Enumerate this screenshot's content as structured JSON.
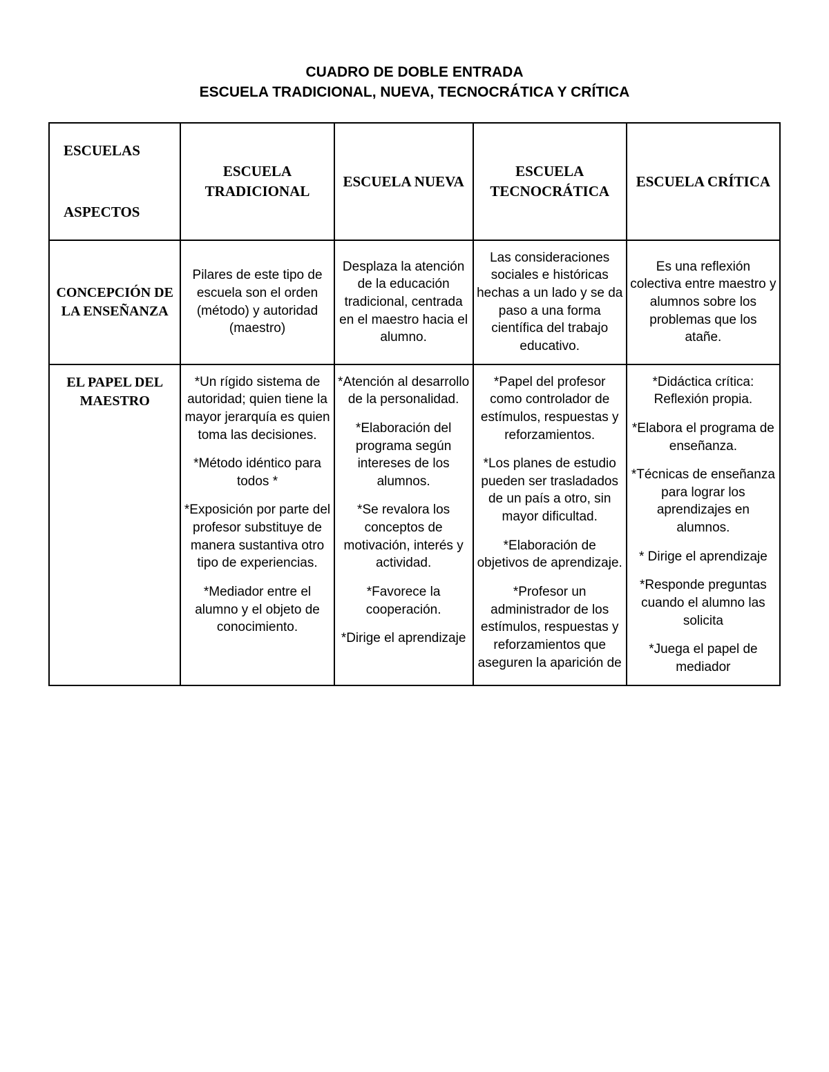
{
  "title": {
    "line1": "CUADRO DE DOBLE ENTRADA",
    "line2": "ESCUELA TRADICIONAL, NUEVA, TECNOCRÁTICA Y CRÍTICA"
  },
  "headers": {
    "corner_top": "ESCUELAS",
    "corner_bottom": "ASPECTOS",
    "col1": "ESCUELA TRADICIONAL",
    "col2": "ESCUELA NUEVA",
    "col3": "ESCUELA TECNOCRÁTICA",
    "col4": "ESCUELA CRÍTICA"
  },
  "rows": {
    "concepcion": {
      "label": "CONCEPCIÓN DE LA ENSEÑANZA",
      "tradicional": "Pilares de este tipo de escuela son el orden (método) y autoridad (maestro)",
      "nueva": "Desplaza la atención de la educación tradicional, centrada en el maestro hacia el alumno.",
      "tecnocratica": "Las consideraciones sociales e históricas hechas a un lado y se da paso a una forma científica del trabajo educativo.",
      "critica": "Es una reflexión colectiva entre maestro y alumnos sobre los problemas que los atañe."
    },
    "papel": {
      "label": "EL PAPEL DEL MAESTRO",
      "tradicional": {
        "p1": "*Un rígido sistema de autoridad; quien tiene la mayor jerarquía es quien toma las decisiones.",
        "p2": "*Método idéntico para todos   *",
        "p3": "*Exposición por parte del profesor substituye de manera sustantiva otro tipo de experiencias.",
        "p4": "*Mediador entre el alumno y el objeto de conocimiento."
      },
      "nueva": {
        "p1": "*Atención al desarrollo de la personalidad.",
        "p2": "*Elaboración del programa según intereses de los alumnos.",
        "p3": "*Se revalora los conceptos de motivación, interés y actividad.",
        "p4": "*Favorece la cooperación.",
        "p5": "*Dirige el aprendizaje"
      },
      "tecnocratica": {
        "p1": "*Papel del profesor como controlador de estímulos, respuestas y reforzamientos.",
        "p2": "*Los planes de estudio pueden ser trasladados de un país a otro, sin mayor dificultad.",
        "p3": "*Elaboración de objetivos de aprendizaje.",
        "p4": "*Profesor un administrador de los estímulos, respuestas y reforzamientos que aseguren la aparición de"
      },
      "critica": {
        "p1": "*Didáctica crítica: Reflexión propia.",
        "p2": "*Elabora el programa de enseñanza.",
        "p3": "*Técnicas de enseñanza para lograr los aprendizajes en alumnos.",
        "p4": "* Dirige el aprendizaje",
        "p5": "*Responde preguntas cuando el alumno las solicita",
        "p6": "*Juega el papel de mediador"
      }
    }
  }
}
